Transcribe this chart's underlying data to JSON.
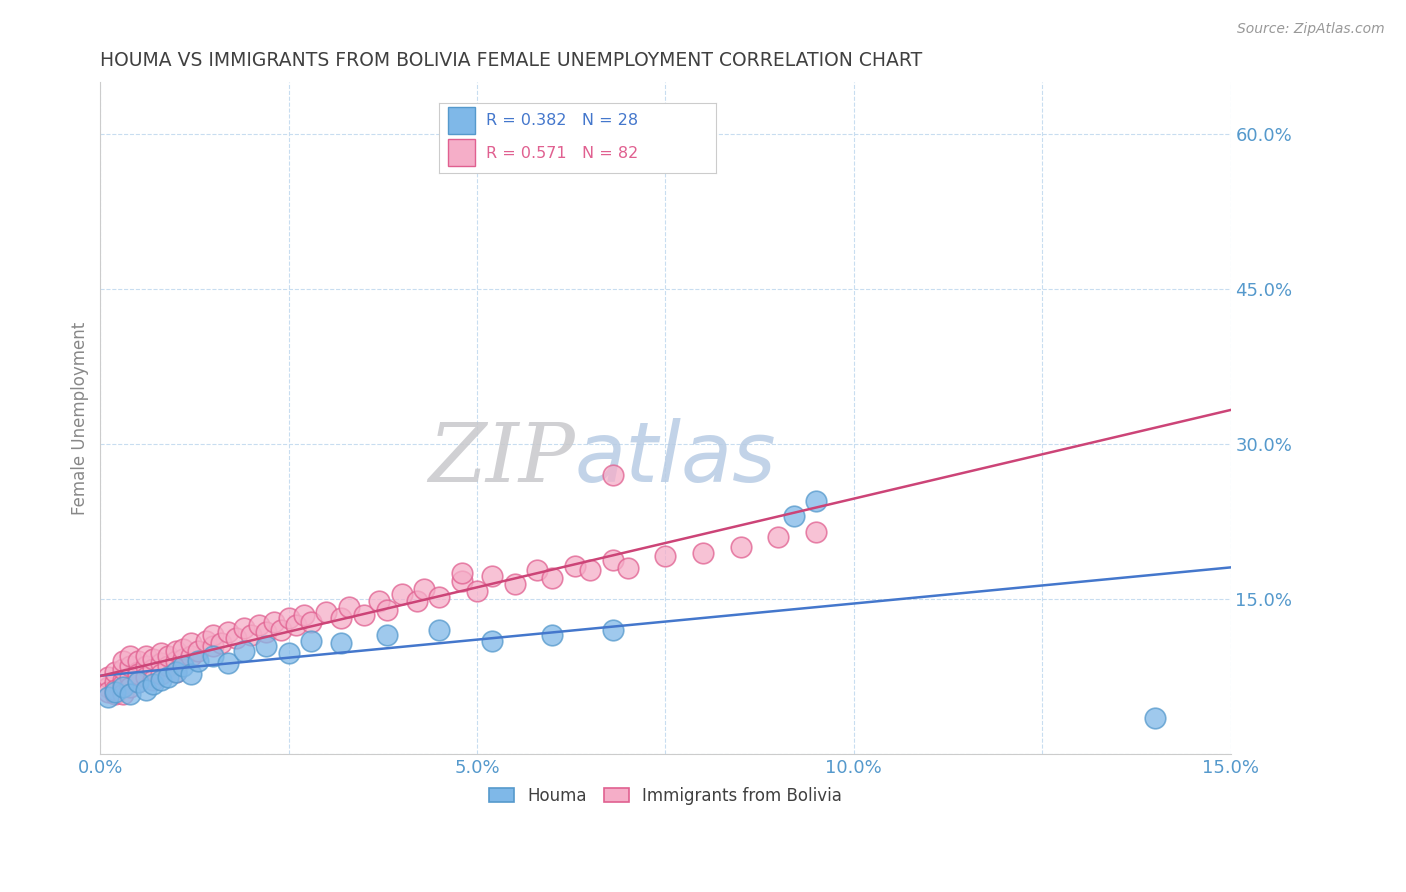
{
  "title": "HOUMA VS IMMIGRANTS FROM BOLIVIA FEMALE UNEMPLOYMENT CORRELATION CHART",
  "source_text": "Source: ZipAtlas.com",
  "ylabel": "Female Unemployment",
  "xlim": [
    0.0,
    0.15
  ],
  "ylim": [
    0.0,
    0.65
  ],
  "yticks": [
    0.0,
    0.15,
    0.3,
    0.45,
    0.6
  ],
  "xticks": [
    0.0,
    0.025,
    0.05,
    0.075,
    0.1,
    0.125,
    0.15
  ],
  "xtick_labels": [
    "0.0%",
    "",
    "5.0%",
    "",
    "10.0%",
    "",
    "15.0%"
  ],
  "ytick_labels": [
    "",
    "15.0%",
    "30.0%",
    "45.0%",
    "60.0%"
  ],
  "watermark_zip": "ZIP",
  "watermark_atlas": "atlas",
  "blue_color": "#7fb8e8",
  "blue_edge_color": "#5599cc",
  "pink_color": "#f5aec8",
  "pink_edge_color": "#e06090",
  "blue_line_color": "#4477cc",
  "pink_line_color": "#cc4477",
  "title_color": "#404040",
  "axis_tick_color": "#5599cc",
  "grid_color": "#c8ddf0",
  "source_color": "#999999",
  "legend_border_color": "#cccccc",
  "houma_R": 0.382,
  "houma_N": 28,
  "bolivia_R": 0.571,
  "bolivia_N": 82,
  "houma_x": [
    0.001,
    0.002,
    0.003,
    0.004,
    0.005,
    0.006,
    0.007,
    0.008,
    0.009,
    0.01,
    0.011,
    0.012,
    0.013,
    0.015,
    0.017,
    0.019,
    0.022,
    0.025,
    0.028,
    0.032,
    0.038,
    0.045,
    0.052,
    0.06,
    0.068,
    0.092,
    0.14,
    0.095
  ],
  "houma_y": [
    0.055,
    0.06,
    0.065,
    0.058,
    0.07,
    0.062,
    0.068,
    0.072,
    0.075,
    0.08,
    0.085,
    0.078,
    0.09,
    0.095,
    0.088,
    0.1,
    0.105,
    0.098,
    0.11,
    0.108,
    0.115,
    0.12,
    0.11,
    0.115,
    0.12,
    0.23,
    0.035,
    0.245
  ],
  "bolivia_x": [
    0.001,
    0.001,
    0.001,
    0.002,
    0.002,
    0.002,
    0.002,
    0.003,
    0.003,
    0.003,
    0.003,
    0.003,
    0.004,
    0.004,
    0.004,
    0.004,
    0.005,
    0.005,
    0.005,
    0.005,
    0.006,
    0.006,
    0.006,
    0.007,
    0.007,
    0.007,
    0.008,
    0.008,
    0.008,
    0.009,
    0.009,
    0.01,
    0.01,
    0.01,
    0.011,
    0.011,
    0.012,
    0.012,
    0.013,
    0.014,
    0.015,
    0.015,
    0.016,
    0.017,
    0.018,
    0.019,
    0.02,
    0.021,
    0.022,
    0.023,
    0.024,
    0.025,
    0.026,
    0.027,
    0.028,
    0.03,
    0.032,
    0.033,
    0.035,
    0.037,
    0.038,
    0.04,
    0.042,
    0.043,
    0.045,
    0.048,
    0.05,
    0.052,
    0.055,
    0.058,
    0.06,
    0.063,
    0.065,
    0.068,
    0.07,
    0.075,
    0.08,
    0.085,
    0.09,
    0.095,
    0.068,
    0.048
  ],
  "bolivia_y": [
    0.065,
    0.075,
    0.06,
    0.058,
    0.07,
    0.08,
    0.062,
    0.072,
    0.068,
    0.082,
    0.058,
    0.09,
    0.075,
    0.085,
    0.065,
    0.095,
    0.08,
    0.07,
    0.09,
    0.078,
    0.085,
    0.075,
    0.095,
    0.082,
    0.092,
    0.072,
    0.088,
    0.078,
    0.098,
    0.085,
    0.095,
    0.09,
    0.1,
    0.08,
    0.092,
    0.102,
    0.095,
    0.108,
    0.1,
    0.11,
    0.105,
    0.115,
    0.108,
    0.118,
    0.112,
    0.122,
    0.115,
    0.125,
    0.118,
    0.128,
    0.12,
    0.132,
    0.125,
    0.135,
    0.128,
    0.138,
    0.132,
    0.142,
    0.135,
    0.148,
    0.14,
    0.155,
    0.148,
    0.16,
    0.152,
    0.168,
    0.158,
    0.172,
    0.165,
    0.178,
    0.17,
    0.182,
    0.178,
    0.188,
    0.18,
    0.192,
    0.195,
    0.2,
    0.21,
    0.215,
    0.27,
    0.175
  ]
}
